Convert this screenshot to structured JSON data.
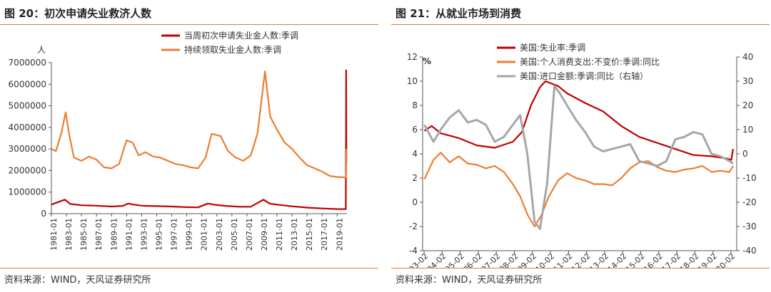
{
  "figures": [
    {
      "title": "图 20：初次申请失业救济人数",
      "source": "资料来源：WIND，天风证券研究所"
    },
    {
      "title": "图 21：从就业市场到消费",
      "source": "资料来源：WIND，天风证券研究所"
    }
  ],
  "colors": {
    "red": "#c00000",
    "orange": "#ed7d31",
    "gray": "#a6a6a6",
    "rule": "#e07a3b",
    "axis": "#555555"
  },
  "chart_data": [
    {
      "type": "line",
      "title": "",
      "ylabel": "人",
      "ylim": [
        0,
        7000000
      ],
      "yticks": [
        "0",
        "1000000",
        "2000000",
        "3000000",
        "4000000",
        "5000000",
        "6000000",
        "7000000"
      ],
      "xlim": [
        1981,
        2020.3
      ],
      "xticks": [
        "1981-01",
        "1983-01",
        "1985-01",
        "1987-01",
        "1989-01",
        "1991-01",
        "1993-01",
        "1995-01",
        "1997-01",
        "1999-01",
        "2001-01",
        "2003-01",
        "2005-01",
        "2007-01",
        "2009-01",
        "2011-01",
        "2013-01",
        "2015-01",
        "2017-01",
        "2019-01"
      ],
      "legend_position": "top",
      "series": [
        {
          "name": "当周初次申请失业金人数:季调",
          "color": "#c00000",
          "points": [
            [
              1981,
              420000
            ],
            [
              1982,
              550000
            ],
            [
              1982.8,
              650000
            ],
            [
              1983.5,
              450000
            ],
            [
              1985,
              390000
            ],
            [
              1987,
              370000
            ],
            [
              1989,
              330000
            ],
            [
              1990.5,
              360000
            ],
            [
              1991.2,
              470000
            ],
            [
              1992,
              420000
            ],
            [
              1993,
              370000
            ],
            [
              1995,
              350000
            ],
            [
              1997,
              330000
            ],
            [
              1999,
              300000
            ],
            [
              2000.5,
              290000
            ],
            [
              2001.8,
              470000
            ],
            [
              2003,
              400000
            ],
            [
              2004.5,
              350000
            ],
            [
              2006,
              320000
            ],
            [
              2007.5,
              320000
            ],
            [
              2009.2,
              650000
            ],
            [
              2010,
              470000
            ],
            [
              2011,
              420000
            ],
            [
              2013,
              340000
            ],
            [
              2015,
              280000
            ],
            [
              2017,
              240000
            ],
            [
              2019,
              215000
            ],
            [
              2020.15,
              211000
            ],
            [
              2020.18,
              3300000
            ],
            [
              2020.2,
              6648000
            ],
            [
              2020.22,
              2400000
            ]
          ]
        },
        {
          "name": "持续领取失业金人数:季调",
          "color": "#ed7d31",
          "points": [
            [
              1981,
              3000000
            ],
            [
              1981.6,
              2900000
            ],
            [
              1982.3,
              3700000
            ],
            [
              1982.9,
              4700000
            ],
            [
              1983.4,
              3600000
            ],
            [
              1984,
              2600000
            ],
            [
              1985,
              2450000
            ],
            [
              1986,
              2650000
            ],
            [
              1987,
              2500000
            ],
            [
              1988,
              2150000
            ],
            [
              1989,
              2100000
            ],
            [
              1990,
              2300000
            ],
            [
              1991,
              3400000
            ],
            [
              1991.8,
              3300000
            ],
            [
              1992.6,
              2700000
            ],
            [
              1993.5,
              2850000
            ],
            [
              1994.5,
              2650000
            ],
            [
              1995.5,
              2600000
            ],
            [
              1996.5,
              2450000
            ],
            [
              1997.5,
              2300000
            ],
            [
              1998.5,
              2250000
            ],
            [
              1999.5,
              2150000
            ],
            [
              2000.5,
              2100000
            ],
            [
              2001.5,
              2600000
            ],
            [
              2002.3,
              3700000
            ],
            [
              2003.5,
              3600000
            ],
            [
              2004.5,
              2900000
            ],
            [
              2005.5,
              2600000
            ],
            [
              2006.5,
              2450000
            ],
            [
              2007.5,
              2700000
            ],
            [
              2008.4,
              3700000
            ],
            [
              2009.4,
              6600000
            ],
            [
              2010.1,
              4500000
            ],
            [
              2011,
              3900000
            ],
            [
              2012,
              3300000
            ],
            [
              2013,
              3000000
            ],
            [
              2014,
              2600000
            ],
            [
              2015,
              2250000
            ],
            [
              2016,
              2100000
            ],
            [
              2017,
              1950000
            ],
            [
              2018,
              1750000
            ],
            [
              2019,
              1700000
            ],
            [
              2020.15,
              1680000
            ],
            [
              2020.2,
              1900000
            ],
            [
              2020.22,
              3000000
            ]
          ]
        }
      ]
    },
    {
      "type": "line",
      "title": "",
      "ylabel": "%",
      "ylim": [
        -4,
        12
      ],
      "yticks": [
        "-4",
        "-2",
        "0",
        "2",
        "4",
        "6",
        "8",
        "10",
        "12"
      ],
      "y2lim": [
        -40,
        40
      ],
      "y2ticks": [
        "-40",
        "-30",
        "-20",
        "-10",
        "0",
        "10",
        "20",
        "30",
        "40"
      ],
      "xlim": [
        2003.0,
        2020.4
      ],
      "xticks": [
        "2003-02",
        "2004-02",
        "2005-02",
        "2006-02",
        "2007-02",
        "2008-02",
        "2009-02",
        "2010-02",
        "2011-02",
        "2012-02",
        "2013-02",
        "2014-02",
        "2015-02",
        "2016-02",
        "2017-02",
        "2018-02",
        "2019-02",
        "2020-02"
      ],
      "legend_position": "top",
      "series": [
        {
          "name": "美国:失业率:季调",
          "color": "#c00000",
          "axis": "left",
          "points": [
            [
              2003.1,
              5.9
            ],
            [
              2003.5,
              6.3
            ],
            [
              2004,
              5.7
            ],
            [
              2005,
              5.3
            ],
            [
              2006,
              4.7
            ],
            [
              2007,
              4.5
            ],
            [
              2008,
              5.0
            ],
            [
              2008.5,
              5.8
            ],
            [
              2009,
              8.0
            ],
            [
              2009.5,
              9.5
            ],
            [
              2009.8,
              10.0
            ],
            [
              2010.5,
              9.6
            ],
            [
              2011,
              9.0
            ],
            [
              2012,
              8.2
            ],
            [
              2013,
              7.5
            ],
            [
              2014,
              6.3
            ],
            [
              2015,
              5.4
            ],
            [
              2016,
              4.9
            ],
            [
              2017,
              4.4
            ],
            [
              2018,
              3.9
            ],
            [
              2019,
              3.8
            ],
            [
              2019.9,
              3.6
            ],
            [
              2020.1,
              3.5
            ],
            [
              2020.2,
              4.4
            ]
          ]
        },
        {
          "name": "美国:个人消费支出:不变价:季调:同比",
          "color": "#ed7d31",
          "axis": "left",
          "points": [
            [
              2003.1,
              1.9
            ],
            [
              2003.6,
              3.5
            ],
            [
              2004,
              4.1
            ],
            [
              2004.5,
              3.3
            ],
            [
              2005,
              3.8
            ],
            [
              2005.5,
              3.2
            ],
            [
              2006,
              3.1
            ],
            [
              2006.5,
              2.8
            ],
            [
              2007,
              3.0
            ],
            [
              2007.5,
              2.5
            ],
            [
              2008,
              1.5
            ],
            [
              2008.4,
              0.5
            ],
            [
              2008.8,
              -1.0
            ],
            [
              2009.2,
              -2.0
            ],
            [
              2009.6,
              -1.0
            ],
            [
              2010,
              0.5
            ],
            [
              2010.5,
              1.8
            ],
            [
              2011,
              2.4
            ],
            [
              2011.5,
              2.0
            ],
            [
              2012,
              1.8
            ],
            [
              2012.5,
              1.5
            ],
            [
              2013,
              1.5
            ],
            [
              2013.5,
              1.4
            ],
            [
              2014,
              2.0
            ],
            [
              2014.5,
              2.8
            ],
            [
              2015,
              3.3
            ],
            [
              2015.5,
              3.4
            ],
            [
              2016,
              2.9
            ],
            [
              2016.5,
              2.6
            ],
            [
              2017,
              2.5
            ],
            [
              2017.5,
              2.7
            ],
            [
              2018,
              2.8
            ],
            [
              2018.5,
              3.0
            ],
            [
              2019,
              2.5
            ],
            [
              2019.5,
              2.6
            ],
            [
              2020,
              2.5
            ],
            [
              2020.2,
              3.0
            ]
          ]
        },
        {
          "name": "美国:进口金额:季调:同比（右轴）",
          "color": "#a6a6a6",
          "axis": "right",
          "points": [
            [
              2003.1,
              12
            ],
            [
              2003.6,
              5
            ],
            [
              2004,
              10
            ],
            [
              2004.5,
              15
            ],
            [
              2005,
              18
            ],
            [
              2005.5,
              13
            ],
            [
              2006,
              14
            ],
            [
              2006.5,
              12
            ],
            [
              2007,
              5
            ],
            [
              2007.5,
              7
            ],
            [
              2008,
              12
            ],
            [
              2008.4,
              16
            ],
            [
              2008.8,
              0
            ],
            [
              2009.2,
              -28
            ],
            [
              2009.5,
              -31
            ],
            [
              2009.9,
              -12
            ],
            [
              2010.3,
              28
            ],
            [
              2010.6,
              25
            ],
            [
              2011,
              20
            ],
            [
              2011.5,
              14
            ],
            [
              2012,
              9
            ],
            [
              2012.5,
              3
            ],
            [
              2013,
              1
            ],
            [
              2013.5,
              2
            ],
            [
              2014,
              3
            ],
            [
              2014.5,
              4
            ],
            [
              2015,
              -3
            ],
            [
              2015.5,
              -4
            ],
            [
              2016,
              -5
            ],
            [
              2016.5,
              -3
            ],
            [
              2017,
              6
            ],
            [
              2017.5,
              7
            ],
            [
              2018,
              9
            ],
            [
              2018.5,
              8
            ],
            [
              2019,
              0
            ],
            [
              2019.5,
              -1
            ],
            [
              2020,
              -3
            ],
            [
              2020.2,
              -4
            ]
          ]
        }
      ]
    }
  ]
}
